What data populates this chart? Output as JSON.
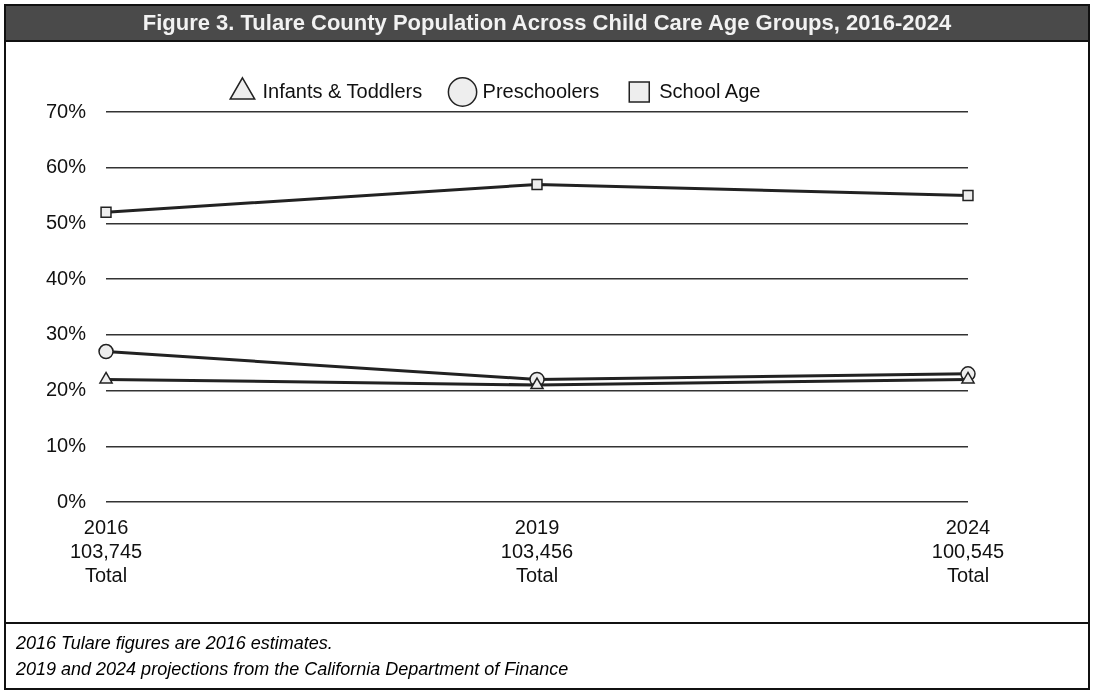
{
  "chart_data": {
    "type": "line",
    "title": "Figure 3. Tulare County Population Across Child Care Age Groups, 2016-2024",
    "categories": [
      "2016\n103,745\nTotal",
      "2019\n103,456\nTotal",
      "2024\n100,545\nTotal"
    ],
    "series": [
      {
        "name": "Infants & Toddlers",
        "color": "#222222",
        "marker": "triangle",
        "values": [
          22,
          21,
          22
        ]
      },
      {
        "name": "Preschoolers",
        "color": "#222222",
        "marker": "circle",
        "values": [
          27,
          22,
          23
        ]
      },
      {
        "name": "School Age",
        "color": "#222222",
        "marker": "square",
        "values": [
          52,
          57,
          55
        ]
      }
    ],
    "ylim": [
      0,
      70
    ],
    "yticks": [
      {
        "value": 0,
        "label": "0%"
      },
      {
        "value": 10,
        "label": "10%"
      },
      {
        "value": 20,
        "label": "20%"
      },
      {
        "value": 30,
        "label": "30%"
      },
      {
        "value": 40,
        "label": "40%"
      },
      {
        "value": 50,
        "label": "50%"
      },
      {
        "value": 60,
        "label": "60%"
      },
      {
        "value": 70,
        "label": "70%"
      }
    ],
    "grid": "y",
    "legend": "top",
    "line_style": "solid",
    "annotations": [
      "2016 Tulare figures are 2016 estimates.",
      "2019 and 2024 projections from the California Department of Finance"
    ]
  }
}
